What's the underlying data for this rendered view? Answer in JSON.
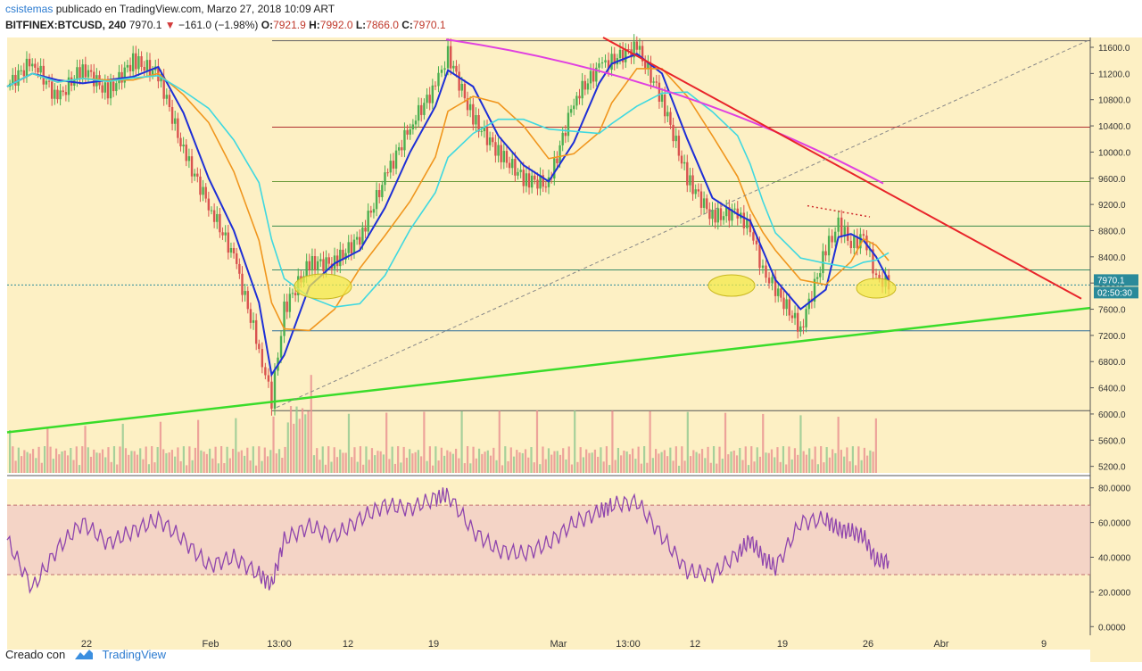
{
  "header": {
    "author": "csistemas",
    "published": "publicado en TradingView.com, Marzo 27, 2018 10:09 ART",
    "symbol": "BITFINEX:BTCUSD, 240",
    "last": "7970.1",
    "change": "−161.0 (−1.98%)",
    "o_label": "O:",
    "o": "7921.9",
    "h_label": "H:",
    "h": "7992.0",
    "l_label": "L:",
    "l": "7866.0",
    "c_label": "C:",
    "c": "7970.1"
  },
  "footer": {
    "created": "Creado con",
    "brand": "TradingView"
  },
  "colors": {
    "bg": "#fdf0c4",
    "up": "#4caf50",
    "down": "#d9534f",
    "ema_fast": "#1e2fd6",
    "ema_mid": "#f0961e",
    "ema_slow": "#3fd8e0",
    "ma_long": "#e040e0",
    "trend_red": "#e8242a",
    "trend_green": "#3adc2a",
    "rsi": "#8e44ad"
  },
  "chart_data": [
    {
      "type": "candlestick",
      "title": "BITFINEX:BTCUSD, 240",
      "x_ticks": [
        "22",
        "Feb",
        "13:00",
        "12",
        "19",
        "Mar",
        "13:00",
        "12",
        "19",
        "26",
        "Abr",
        "9"
      ],
      "y_ticks": [
        "11600.0",
        "11200.0",
        "10800.0",
        "10400.0",
        "10000.0",
        "9600.0",
        "9200.0",
        "8800.0",
        "8400.0",
        "8000.0",
        "7600.0",
        "7200.0",
        "6800.0",
        "6400.0",
        "6000.0",
        "5600.0",
        "5200.0"
      ],
      "ylim": [
        5100,
        11750
      ],
      "last_price_label": "7970.1",
      "countdown_label": "02:50:30",
      "close_path_dates": [
        "Jan-16",
        "Jan-18",
        "Jan-20",
        "Jan-22",
        "Jan-24",
        "Jan-26",
        "Jan-28",
        "Jan-30",
        "Feb-01",
        "Feb-03",
        "Feb-05",
        "Feb-06",
        "Feb-07",
        "Feb-09",
        "Feb-11",
        "Feb-13",
        "Feb-15",
        "Feb-17",
        "Feb-19",
        "Feb-20",
        "Feb-22",
        "Feb-24",
        "Feb-26",
        "Feb-28",
        "Mar-02",
        "Mar-04",
        "Mar-05",
        "Mar-07",
        "Mar-09",
        "Mar-11",
        "Mar-13",
        "Mar-15",
        "Mar-16",
        "Mar-17",
        "Mar-18",
        "Mar-20",
        "Mar-22",
        "Mar-23",
        "Mar-24",
        "Mar-25",
        "Mar-26",
        "Mar-27"
      ],
      "close_path_values": [
        11000,
        11400,
        10800,
        11300,
        10900,
        11400,
        11200,
        10000,
        9200,
        8400,
        7000,
        6200,
        7600,
        8300,
        8300,
        8700,
        9600,
        10400,
        11000,
        11500,
        10500,
        10000,
        9600,
        9500,
        10800,
        11300,
        11400,
        11600,
        10800,
        9600,
        9000,
        9100,
        8800,
        8200,
        7900,
        7300,
        8500,
        8900,
        8600,
        8700,
        8100,
        7970
      ]
    },
    {
      "type": "line",
      "title": "RSI",
      "y_ticks": [
        "80.0000",
        "60.0000",
        "40.0000",
        "20.0000",
        "0.0000"
      ],
      "ylim": [
        -5,
        85
      ],
      "band": [
        30,
        70
      ],
      "path_dates": [
        "Jan-16",
        "Jan-18",
        "Jan-20",
        "Jan-22",
        "Jan-24",
        "Jan-26",
        "Jan-28",
        "Jan-30",
        "Feb-01",
        "Feb-03",
        "Feb-05",
        "Feb-06",
        "Feb-07",
        "Feb-09",
        "Feb-11",
        "Feb-13",
        "Feb-15",
        "Feb-17",
        "Feb-19",
        "Feb-20",
        "Feb-22",
        "Feb-24",
        "Feb-26",
        "Feb-28",
        "Mar-02",
        "Mar-04",
        "Mar-05",
        "Mar-07",
        "Mar-09",
        "Mar-11",
        "Mar-13",
        "Mar-15",
        "Mar-16",
        "Mar-17",
        "Mar-18",
        "Mar-20",
        "Mar-22",
        "Mar-23",
        "Mar-24",
        "Mar-25",
        "Mar-26",
        "Mar-27"
      ],
      "path_values": [
        50,
        22,
        45,
        60,
        48,
        55,
        62,
        50,
        35,
        40,
        30,
        24,
        50,
        58,
        52,
        62,
        70,
        68,
        74,
        76,
        55,
        44,
        42,
        48,
        60,
        66,
        70,
        72,
        52,
        32,
        30,
        42,
        50,
        40,
        34,
        60,
        62,
        56,
        55,
        52,
        38,
        38
      ]
    }
  ]
}
